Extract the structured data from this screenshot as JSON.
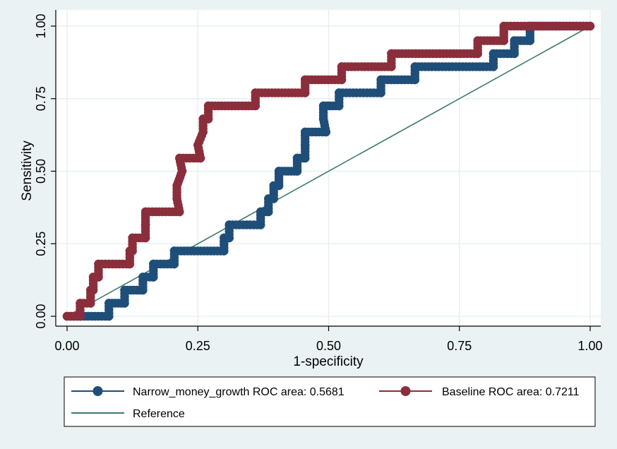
{
  "chart_data": {
    "type": "line",
    "title": "",
    "xlabel": "1-specificity",
    "ylabel": "Sensitivity",
    "xlim": [
      0,
      1
    ],
    "ylim": [
      0,
      1
    ],
    "xticks": [
      "0.00",
      "0.25",
      "0.50",
      "0.75",
      "1.00"
    ],
    "yticks": [
      "0.00",
      "0.25",
      "0.50",
      "0.75",
      "1.00"
    ],
    "grid": true,
    "legend_position": "bottom",
    "series": [
      {
        "name": "Narrow_money_growth ROC area: 0.5681",
        "color": "#1f4e79",
        "marker": "circle",
        "points": [
          [
            0.0,
            0.0
          ],
          [
            0.08,
            0.0
          ],
          [
            0.08,
            0.045
          ],
          [
            0.11,
            0.045
          ],
          [
            0.11,
            0.09
          ],
          [
            0.145,
            0.09
          ],
          [
            0.145,
            0.135
          ],
          [
            0.165,
            0.135
          ],
          [
            0.165,
            0.18
          ],
          [
            0.205,
            0.18
          ],
          [
            0.205,
            0.225
          ],
          [
            0.3,
            0.225
          ],
          [
            0.3,
            0.27
          ],
          [
            0.31,
            0.27
          ],
          [
            0.31,
            0.315
          ],
          [
            0.37,
            0.315
          ],
          [
            0.37,
            0.36
          ],
          [
            0.385,
            0.36
          ],
          [
            0.385,
            0.405
          ],
          [
            0.395,
            0.405
          ],
          [
            0.395,
            0.45
          ],
          [
            0.405,
            0.45
          ],
          [
            0.405,
            0.5
          ],
          [
            0.44,
            0.5
          ],
          [
            0.44,
            0.545
          ],
          [
            0.455,
            0.545
          ],
          [
            0.455,
            0.59
          ],
          [
            0.455,
            0.59
          ],
          [
            0.455,
            0.635
          ],
          [
            0.495,
            0.635
          ],
          [
            0.49,
            0.68
          ],
          [
            0.49,
            0.725
          ],
          [
            0.52,
            0.725
          ],
          [
            0.52,
            0.77
          ],
          [
            0.6,
            0.77
          ],
          [
            0.6,
            0.815
          ],
          [
            0.665,
            0.815
          ],
          [
            0.665,
            0.86
          ],
          [
            0.815,
            0.86
          ],
          [
            0.815,
            0.905
          ],
          [
            0.855,
            0.905
          ],
          [
            0.855,
            0.95
          ],
          [
            0.885,
            0.95
          ],
          [
            0.885,
            1.0
          ],
          [
            1.0,
            1.0
          ]
        ]
      },
      {
        "name": "Baseline ROC area: 0.7211",
        "color": "#8b2e3c",
        "marker": "circle",
        "points": [
          [
            0.0,
            0.0
          ],
          [
            0.025,
            0.0
          ],
          [
            0.025,
            0.045
          ],
          [
            0.045,
            0.045
          ],
          [
            0.045,
            0.09
          ],
          [
            0.05,
            0.09
          ],
          [
            0.05,
            0.135
          ],
          [
            0.06,
            0.135
          ],
          [
            0.06,
            0.18
          ],
          [
            0.12,
            0.18
          ],
          [
            0.12,
            0.225
          ],
          [
            0.125,
            0.225
          ],
          [
            0.125,
            0.27
          ],
          [
            0.15,
            0.27
          ],
          [
            0.15,
            0.315
          ],
          [
            0.15,
            0.315
          ],
          [
            0.15,
            0.36
          ],
          [
            0.215,
            0.36
          ],
          [
            0.21,
            0.405
          ],
          [
            0.21,
            0.45
          ],
          [
            0.22,
            0.5
          ],
          [
            0.215,
            0.545
          ],
          [
            0.255,
            0.545
          ],
          [
            0.25,
            0.59
          ],
          [
            0.26,
            0.635
          ],
          [
            0.26,
            0.68
          ],
          [
            0.27,
            0.68
          ],
          [
            0.27,
            0.725
          ],
          [
            0.36,
            0.725
          ],
          [
            0.36,
            0.77
          ],
          [
            0.455,
            0.77
          ],
          [
            0.455,
            0.815
          ],
          [
            0.525,
            0.815
          ],
          [
            0.525,
            0.86
          ],
          [
            0.62,
            0.86
          ],
          [
            0.62,
            0.905
          ],
          [
            0.785,
            0.905
          ],
          [
            0.785,
            0.95
          ],
          [
            0.835,
            0.95
          ],
          [
            0.835,
            1.0
          ],
          [
            1.0,
            1.0
          ]
        ]
      },
      {
        "name": "Reference",
        "color": "#3c7a6e",
        "marker": "none",
        "points": [
          [
            0.0,
            0.0
          ],
          [
            1.0,
            1.0
          ]
        ]
      }
    ]
  },
  "legend": {
    "items": [
      {
        "label": "Narrow_money_growth ROC area: 0.5681",
        "color": "#1f4e79",
        "marker": "circle"
      },
      {
        "label": "Baseline ROC area: 0.7211",
        "color": "#8b2e3c",
        "marker": "circle"
      },
      {
        "label": "Reference",
        "color": "#3c7a6e",
        "marker": "none"
      }
    ]
  },
  "colors": {
    "plot_background": "#ffffff",
    "outer_background": "#eaf2f3",
    "grid": "#e8eff2",
    "axis": "#000000"
  }
}
